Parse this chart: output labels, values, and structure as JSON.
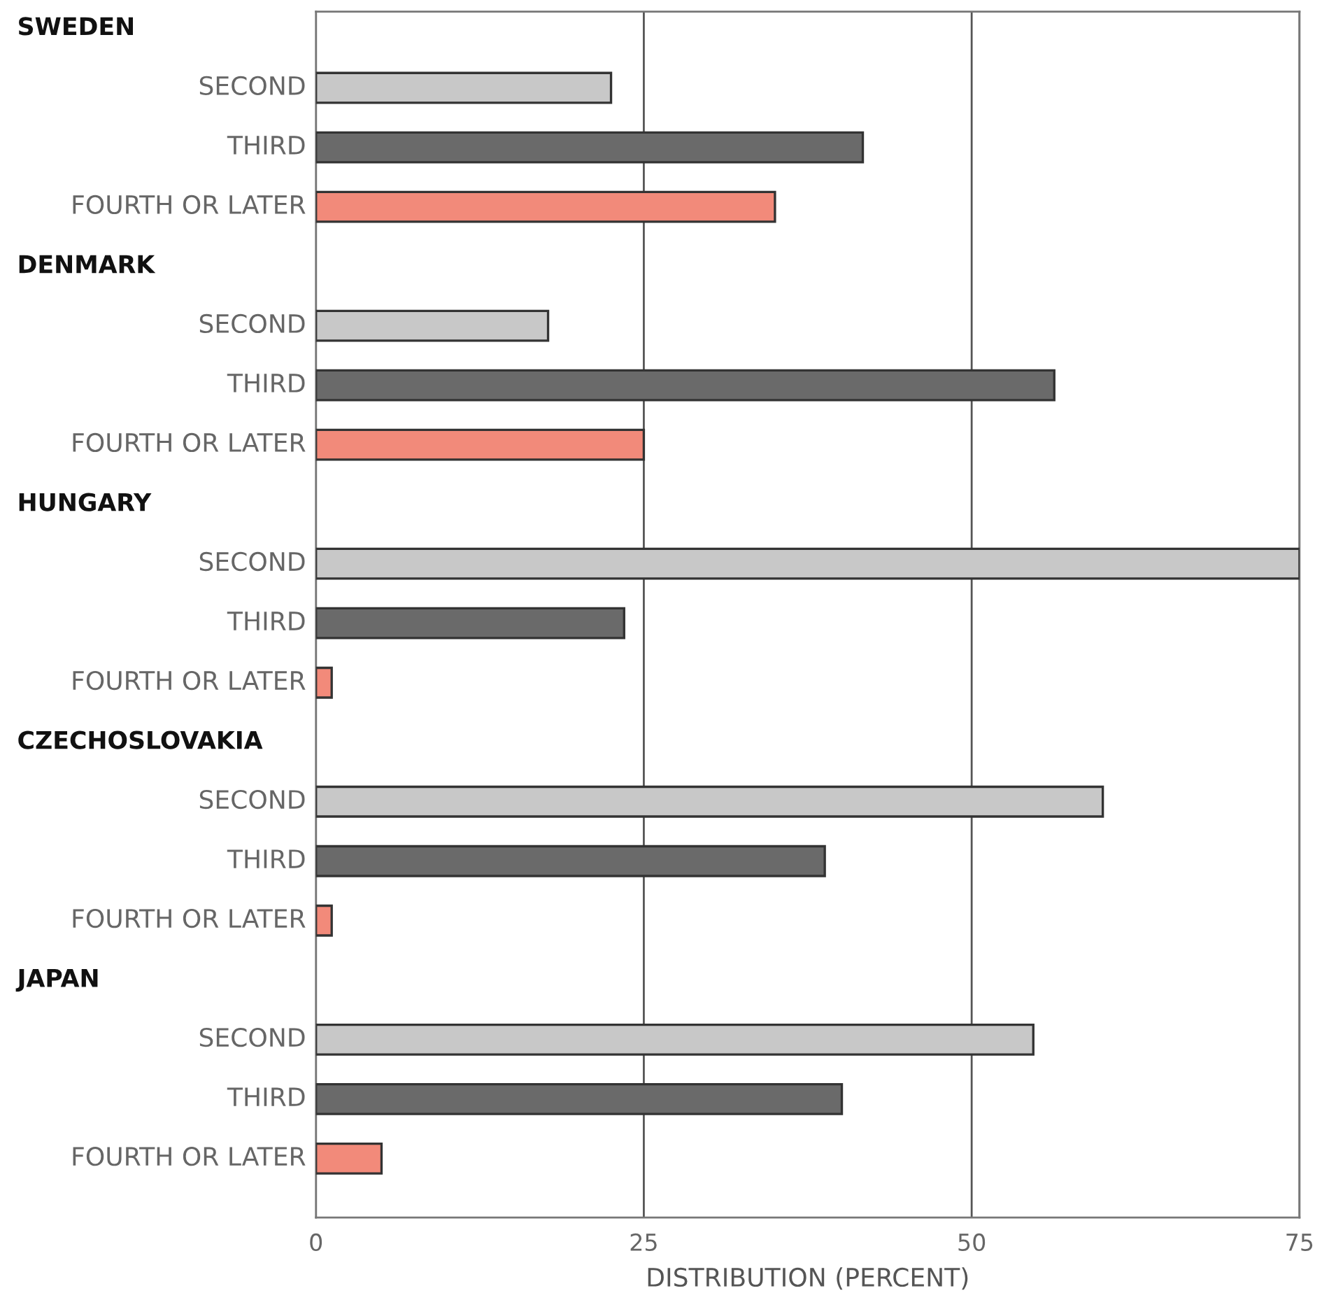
{
  "chart_data": {
    "type": "bar",
    "orientation": "horizontal",
    "xlabel": "DISTRIBUTION (PERCENT)",
    "annotations": [
      "SWEDEN",
      "DENMARK",
      "HUNGARY",
      "CZECHOSLOVAKIA",
      "JAPAN"
    ],
    "categories": [
      null,
      "SECOND",
      "THIRD",
      "FOURTH OR LATER",
      null,
      "SECOND",
      "THIRD",
      "FOURTH OR LATER",
      null,
      "SECOND",
      "THIRD",
      "FOURTH OR LATER",
      null,
      "SECOND",
      "THIRD",
      "FOURTH OR LATER",
      null,
      "SECOND",
      "THIRD",
      "FOURTH OR LATER"
    ],
    "values": [
      null,
      22.5,
      41.7,
      35,
      null,
      17.7,
      56.3,
      25,
      null,
      75,
      23.5,
      1.2,
      null,
      60,
      38.8,
      1.2,
      null,
      54.7,
      40.1,
      5
    ],
    "colors": [
      null,
      "#c8c8c8",
      "#6a6a6a",
      "#f28a7a",
      null,
      "#c8c8c8",
      "#6a6a6a",
      "#f28a7a",
      null,
      "#c8c8c8",
      "#6a6a6a",
      "#f28a7a",
      null,
      "#c8c8c8",
      "#6a6a6a",
      "#f28a7a",
      null,
      "#c8c8c8",
      "#6a6a6a",
      "#f28a7a"
    ],
    "xlim": [
      0,
      75
    ],
    "xticks": [
      0,
      25,
      50,
      75
    ],
    "grid": "x",
    "legend": false
  }
}
